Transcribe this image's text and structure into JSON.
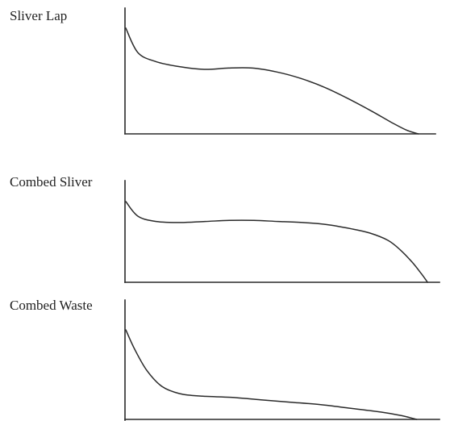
{
  "chart_data": [
    {
      "type": "line",
      "title": "Sliver Lap",
      "xlabel": "",
      "ylabel": "",
      "grid": false,
      "xlim": [
        0,
        1
      ],
      "ylim": [
        0,
        1
      ],
      "series": [
        {
          "x": [
            0.0,
            0.04,
            0.1,
            0.18,
            0.26,
            0.34,
            0.42,
            0.5,
            0.58,
            0.66,
            0.74,
            0.82,
            0.88,
            0.93,
            0.97
          ],
          "y": [
            0.82,
            0.63,
            0.56,
            0.52,
            0.5,
            0.51,
            0.51,
            0.48,
            0.43,
            0.36,
            0.27,
            0.17,
            0.09,
            0.03,
            0.0
          ]
        }
      ]
    },
    {
      "type": "line",
      "title": "Combed Sliver",
      "xlabel": "",
      "ylabel": "",
      "grid": false,
      "xlim": [
        0,
        1
      ],
      "ylim": [
        0,
        1
      ],
      "series": [
        {
          "x": [
            0.0,
            0.04,
            0.1,
            0.18,
            0.26,
            0.34,
            0.42,
            0.5,
            0.58,
            0.66,
            0.74,
            0.8,
            0.86,
            0.9,
            0.94,
            0.97,
            0.99
          ],
          "y": [
            0.77,
            0.63,
            0.58,
            0.57,
            0.58,
            0.59,
            0.59,
            0.58,
            0.57,
            0.55,
            0.51,
            0.47,
            0.4,
            0.31,
            0.19,
            0.08,
            0.0
          ]
        }
      ]
    },
    {
      "type": "line",
      "title": "Combed Waste",
      "xlabel": "",
      "ylabel": "",
      "grid": false,
      "xlim": [
        0,
        1
      ],
      "ylim": [
        0,
        1
      ],
      "series": [
        {
          "x": [
            0.0,
            0.03,
            0.07,
            0.12,
            0.18,
            0.25,
            0.35,
            0.45,
            0.55,
            0.65,
            0.75,
            0.85,
            0.92,
            0.97
          ],
          "y": [
            0.73,
            0.57,
            0.4,
            0.27,
            0.21,
            0.19,
            0.18,
            0.16,
            0.14,
            0.12,
            0.09,
            0.06,
            0.03,
            0.0
          ]
        }
      ]
    }
  ]
}
